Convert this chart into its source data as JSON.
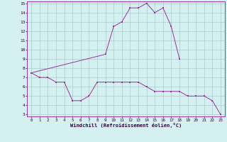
{
  "xlabel": "Windchill (Refroidissement éolien,°C)",
  "hours": [
    0,
    1,
    2,
    3,
    4,
    5,
    6,
    7,
    8,
    9,
    10,
    11,
    12,
    13,
    14,
    15,
    16,
    17,
    18,
    19,
    20,
    21,
    22,
    23
  ],
  "line1": [
    7.5,
    7.0,
    7.0,
    6.5,
    6.5,
    4.5,
    4.5,
    5.0,
    6.5,
    6.5,
    6.5,
    6.5,
    6.5,
    6.5,
    6.0,
    5.5,
    5.5,
    5.5,
    5.5,
    5.0,
    5.0,
    5.0,
    4.5,
    3.0
  ],
  "line2": [
    7.5,
    null,
    null,
    null,
    null,
    null,
    null,
    null,
    null,
    9.5,
    12.5,
    13.0,
    14.5,
    14.5,
    15.0,
    14.0,
    14.5,
    12.5,
    9.0,
    null,
    null,
    null,
    null,
    null
  ],
  "bg_color": "#d4f0f0",
  "line_color": "#993399",
  "grid_color": "#aacccc",
  "ylim": [
    3,
    15
  ],
  "yticks": [
    3,
    4,
    5,
    6,
    7,
    8,
    9,
    10,
    11,
    12,
    13,
    14,
    15
  ],
  "xticks": [
    0,
    1,
    2,
    3,
    4,
    5,
    6,
    7,
    8,
    9,
    10,
    11,
    12,
    13,
    14,
    15,
    16,
    17,
    18,
    19,
    20,
    21,
    22,
    23
  ]
}
